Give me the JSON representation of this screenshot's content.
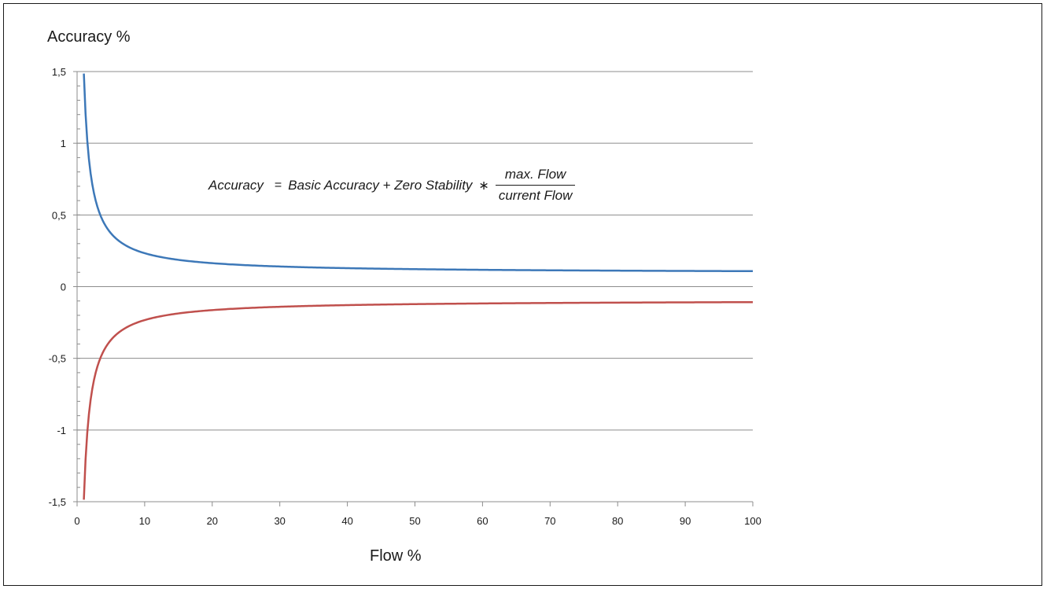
{
  "chart_data": {
    "type": "line",
    "title": "",
    "xlabel": "Flow %",
    "ylabel": "Accuracy %",
    "xlim": [
      0,
      100
    ],
    "ylim": [
      -1.5,
      1.5
    ],
    "x_ticks": [
      0,
      10,
      20,
      30,
      40,
      50,
      60,
      70,
      80,
      90,
      100
    ],
    "x_tick_labels": [
      "0",
      "10",
      "20",
      "30",
      "40",
      "50",
      "60",
      "70",
      "80",
      "90",
      "100"
    ],
    "y_ticks": [
      1.5,
      1,
      0.5,
      0,
      -0.5,
      -1,
      -1.5
    ],
    "y_tick_labels": [
      "1,5",
      "1",
      "0,5",
      "0",
      "-0,5",
      "-1",
      "-1,5"
    ],
    "y_minor_step": 0.1,
    "grid": "horizontal",
    "legend": "none",
    "annotation": {
      "lhs": "Accuracy",
      "equals": "=",
      "rhs": "Basic Accuracy + Zero Stability",
      "times": "∗",
      "numerator": "max. Flow",
      "denominator": "current Flow"
    },
    "series": [
      {
        "color": "#3d78b8",
        "x": [
          1,
          1.5,
          2,
          2.5,
          3,
          4,
          5,
          6,
          8,
          10,
          12,
          15,
          20,
          25,
          30,
          40,
          50,
          60,
          70,
          80,
          90,
          100
        ],
        "y": [
          1.5,
          1.03,
          0.75,
          0.59,
          0.48,
          0.36,
          0.29,
          0.25,
          0.2,
          0.18,
          0.166,
          0.153,
          0.14,
          0.132,
          0.127,
          0.12,
          0.116,
          0.113,
          0.111,
          0.11,
          0.109,
          0.108
        ]
      },
      {
        "color": "#c0504d",
        "x": [
          1,
          1.5,
          2,
          2.5,
          3,
          4,
          5,
          6,
          8,
          10,
          12,
          15,
          20,
          25,
          30,
          40,
          50,
          60,
          70,
          80,
          90,
          100
        ],
        "y": [
          -1.5,
          -1.03,
          -0.75,
          -0.59,
          -0.48,
          -0.36,
          -0.29,
          -0.25,
          -0.2,
          -0.18,
          -0.166,
          -0.153,
          -0.14,
          -0.132,
          -0.127,
          -0.12,
          -0.116,
          -0.113,
          -0.111,
          -0.11,
          -0.109,
          -0.108
        ]
      }
    ]
  }
}
